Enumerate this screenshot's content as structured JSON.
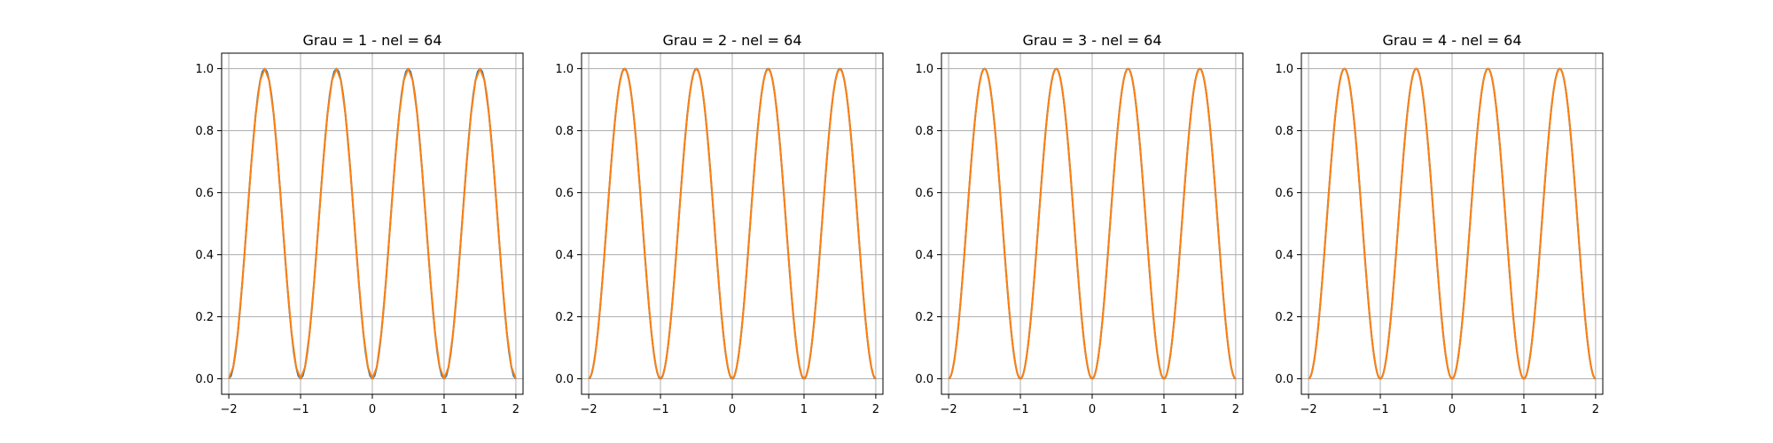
{
  "chart_data": [
    {
      "type": "line",
      "title": "Grau = 1 - nel = 64",
      "xlim": [
        -2.1,
        2.1
      ],
      "ylim": [
        -0.05,
        1.05
      ],
      "xticks": [
        -2,
        -1,
        0,
        1,
        2
      ],
      "yticks": [
        0.0,
        0.2,
        0.4,
        0.6,
        0.8,
        1.0
      ],
      "xtick_labels": [
        "−2",
        "−1",
        "0",
        "1",
        "2"
      ],
      "ytick_labels": [
        "0.0",
        "0.2",
        "0.4",
        "0.6",
        "0.8",
        "1.0"
      ],
      "grid": true,
      "series": [
        {
          "function": "sin^2(pi*x)",
          "x_range": [
            -2,
            2
          ],
          "color": "#1f77b4",
          "points": 129
        },
        {
          "function": "sin^2(pi*x)",
          "x_range": [
            -2,
            2
          ],
          "color": "#ff7f0e",
          "points": 65
        }
      ]
    },
    {
      "type": "line",
      "title": "Grau = 2 - nel = 64",
      "xlim": [
        -2.1,
        2.1
      ],
      "ylim": [
        -0.05,
        1.05
      ],
      "xticks": [
        -2,
        -1,
        0,
        1,
        2
      ],
      "yticks": [
        0.0,
        0.2,
        0.4,
        0.6,
        0.8,
        1.0
      ],
      "xtick_labels": [
        "−2",
        "−1",
        "0",
        "1",
        "2"
      ],
      "ytick_labels": [
        "0.0",
        "0.2",
        "0.4",
        "0.6",
        "0.8",
        "1.0"
      ],
      "grid": true,
      "series": [
        {
          "function": "sin^2(pi*x)",
          "x_range": [
            -2,
            2
          ],
          "color": "#1f77b4",
          "points": 257
        },
        {
          "function": "sin^2(pi*x)",
          "x_range": [
            -2,
            2
          ],
          "color": "#ff7f0e",
          "points": 129
        }
      ]
    },
    {
      "type": "line",
      "title": "Grau = 3 - nel = 64",
      "xlim": [
        -2.1,
        2.1
      ],
      "ylim": [
        -0.05,
        1.05
      ],
      "xticks": [
        -2,
        -1,
        0,
        1,
        2
      ],
      "yticks": [
        0.0,
        0.2,
        0.4,
        0.6,
        0.8,
        1.0
      ],
      "xtick_labels": [
        "−2",
        "−1",
        "0",
        "1",
        "2"
      ],
      "ytick_labels": [
        "0.0",
        "0.2",
        "0.4",
        "0.6",
        "0.8",
        "1.0"
      ],
      "grid": true,
      "series": [
        {
          "function": "sin^2(pi*x)",
          "x_range": [
            -2,
            2
          ],
          "color": "#1f77b4",
          "points": 385
        },
        {
          "function": "sin^2(pi*x)",
          "x_range": [
            -2,
            2
          ],
          "color": "#ff7f0e",
          "points": 193
        }
      ]
    },
    {
      "type": "line",
      "title": "Grau = 4 - nel = 64",
      "xlim": [
        -2.1,
        2.1
      ],
      "ylim": [
        -0.05,
        1.05
      ],
      "xticks": [
        -2,
        -1,
        0,
        1,
        2
      ],
      "yticks": [
        0.0,
        0.2,
        0.4,
        0.6,
        0.8,
        1.0
      ],
      "xtick_labels": [
        "−2",
        "−1",
        "0",
        "1",
        "2"
      ],
      "ytick_labels": [
        "0.0",
        "0.2",
        "0.4",
        "0.6",
        "0.8",
        "1.0"
      ],
      "grid": true,
      "series": [
        {
          "function": "sin^2(pi*x)",
          "x_range": [
            -2,
            2
          ],
          "color": "#1f77b4",
          "points": 513
        },
        {
          "function": "sin^2(pi*x)",
          "x_range": [
            -2,
            2
          ],
          "color": "#ff7f0e",
          "points": 257
        }
      ]
    }
  ]
}
